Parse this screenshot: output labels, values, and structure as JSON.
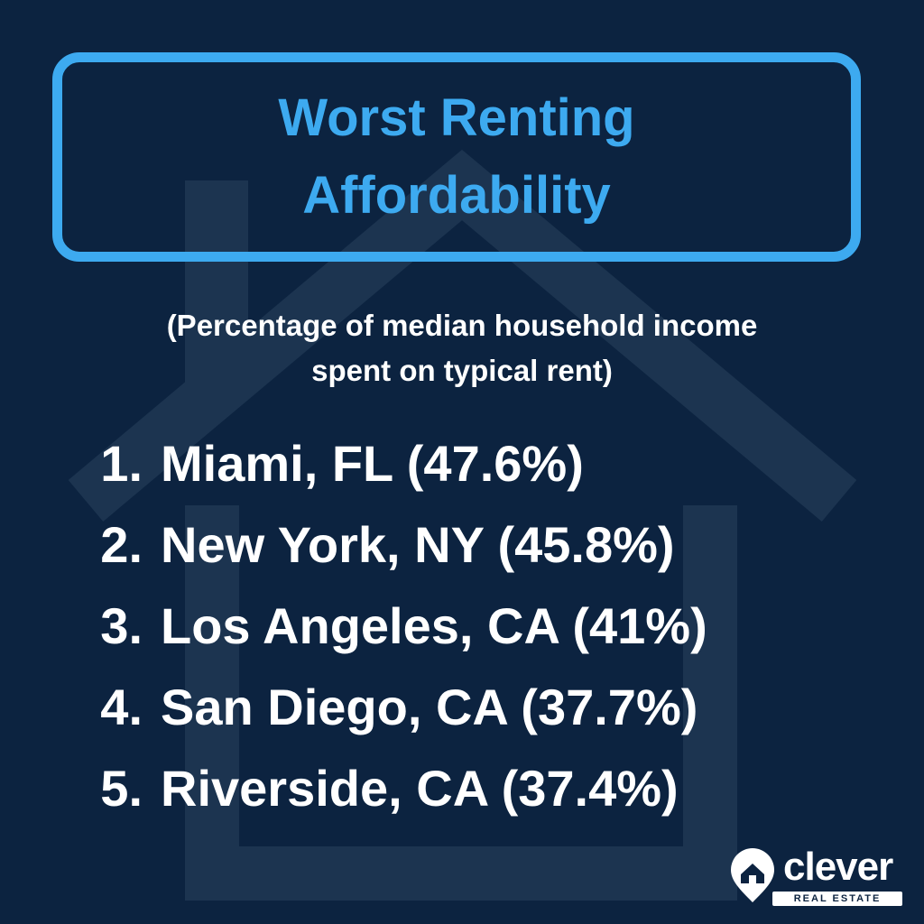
{
  "title": {
    "line1": "Worst Renting",
    "line2": "Affordability"
  },
  "subtitle": {
    "line1": "(Percentage of median household income",
    "line2": "spent on typical rent)"
  },
  "rankings": [
    {
      "rank": "1.",
      "text": "Miami, FL (47.6%)"
    },
    {
      "rank": "2.",
      "text": "New York, NY (45.8%)"
    },
    {
      "rank": "3.",
      "text": "Los Angeles, CA (41%)"
    },
    {
      "rank": "4.",
      "text": "San Diego, CA (37.7%)"
    },
    {
      "rank": "5.",
      "text": "Riverside, CA (37.4%)"
    }
  ],
  "logo": {
    "wordmark": "clever",
    "tagline": "REAL ESTATE",
    "icon": "house-pin-icon"
  },
  "colors": {
    "background": "#0c2340",
    "accent": "#3daaf0",
    "text": "#ffffff",
    "house_watermark": "#1c3450"
  }
}
